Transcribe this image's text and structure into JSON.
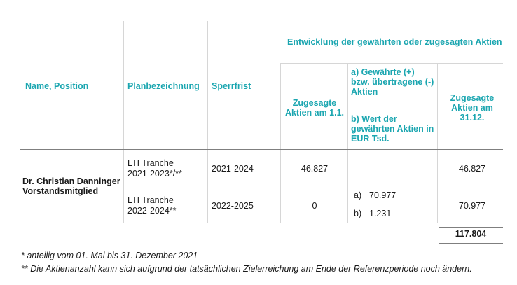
{
  "headers": {
    "name": "Name, Position",
    "plan": "Planbezeichnung",
    "sperrfrist": "Sperrfrist",
    "group": "Entwicklung der gewährten oder zugesagten Aktien",
    "start": "Zugesagte Aktien am 1.1.",
    "change_a": "a) Gewährte (+) bzw. übertragene (-) Aktien",
    "change_b": "b) Wert der gewährten Aktien in EUR Tsd.",
    "end": "Zugesagte Aktien am 31.12."
  },
  "person": {
    "name": "Dr. Christian Danninger",
    "position": "Vorstandsmitglied"
  },
  "rows": [
    {
      "plan_line1": "LTI Tranche",
      "plan_line2": "2021-2023*/**",
      "sperrfrist": "2021-2024",
      "start": "46.827",
      "a": "",
      "b": "",
      "end": "46.827"
    },
    {
      "plan_line1": "LTI Tranche",
      "plan_line2": "2022-2024**",
      "sperrfrist": "2022-2025",
      "start": "0",
      "a_label": "a)",
      "a": "70.977",
      "b_label": "b)",
      "b": "1.231",
      "end": "70.977"
    }
  ],
  "total": "117.804",
  "footnotes": [
    "* anteilig vom 01. Mai bis 31. Dezember 2021",
    "** Die Aktienanzahl kann sich aufgrund der tatsächlichen Zielerreichung am Ende der Referenzperiode noch ändern."
  ]
}
